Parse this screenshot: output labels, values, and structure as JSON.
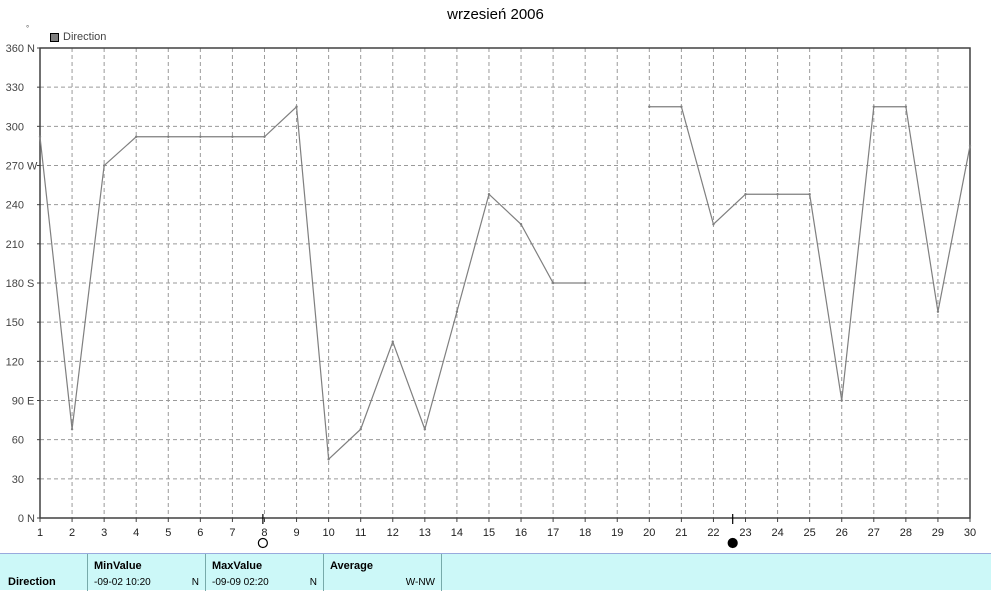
{
  "chart_data": {
    "type": "line",
    "title": "wrzesień 2006",
    "unit_symbol": "°",
    "legend": [
      {
        "label": "Direction",
        "color": "#7f7f7f"
      }
    ],
    "x_ticks": [
      1,
      2,
      3,
      4,
      5,
      6,
      7,
      8,
      9,
      10,
      11,
      12,
      13,
      14,
      15,
      16,
      17,
      18,
      19,
      20,
      21,
      22,
      23,
      24,
      25,
      26,
      27,
      28,
      29,
      30
    ],
    "y_ticks": [
      {
        "value": 0,
        "label": "0",
        "dir": "N"
      },
      {
        "value": 30,
        "label": "30",
        "dir": ""
      },
      {
        "value": 60,
        "label": "60",
        "dir": ""
      },
      {
        "value": 90,
        "label": "90",
        "dir": "E"
      },
      {
        "value": 120,
        "label": "120",
        "dir": ""
      },
      {
        "value": 150,
        "label": "150",
        "dir": ""
      },
      {
        "value": 180,
        "label": "180",
        "dir": "S"
      },
      {
        "value": 210,
        "label": "210",
        "dir": ""
      },
      {
        "value": 240,
        "label": "240",
        "dir": ""
      },
      {
        "value": 270,
        "label": "270",
        "dir": "W"
      },
      {
        "value": 300,
        "label": "300",
        "dir": ""
      },
      {
        "value": 330,
        "label": "330",
        "dir": ""
      },
      {
        "value": 360,
        "label": "360",
        "dir": "N"
      }
    ],
    "xlim": [
      1,
      30
    ],
    "ylim": [
      0,
      360
    ],
    "grid": true,
    "series": [
      {
        "name": "Direction",
        "color": "#7f7f7f",
        "segments": [
          [
            [
              1,
              292
            ],
            [
              2,
              68
            ],
            [
              3,
              270
            ],
            [
              4,
              292
            ],
            [
              5,
              292
            ],
            [
              6,
              292
            ],
            [
              7,
              292
            ],
            [
              8,
              292
            ],
            [
              9,
              315
            ],
            [
              10,
              45
            ],
            [
              11,
              68
            ],
            [
              12,
              135
            ],
            [
              13,
              68
            ],
            [
              14,
              158
            ],
            [
              15,
              248
            ],
            [
              16,
              225
            ],
            [
              17,
              180
            ],
            [
              18,
              180
            ]
          ],
          [
            [
              20,
              315
            ],
            [
              21,
              315
            ],
            [
              22,
              225
            ],
            [
              23,
              248
            ],
            [
              24,
              248
            ],
            [
              25,
              248
            ],
            [
              26,
              90
            ],
            [
              27,
              315
            ],
            [
              28,
              315
            ],
            [
              29,
              158
            ],
            [
              30,
              285
            ]
          ]
        ]
      }
    ],
    "markers": [
      {
        "x": 7.95,
        "type": "open-circle",
        "name": "full-moon-icon"
      },
      {
        "x": 22.6,
        "type": "filled-circle",
        "name": "new-moon-icon"
      }
    ]
  },
  "stats": {
    "row_label": "Direction",
    "min": {
      "header": "MinValue",
      "value": "-09-02  10:20",
      "dir": "N"
    },
    "max": {
      "header": "MaxValue",
      "value": "-09-09  02:20",
      "dir": "N"
    },
    "avg": {
      "header": "Average",
      "value": "W-NW"
    }
  }
}
